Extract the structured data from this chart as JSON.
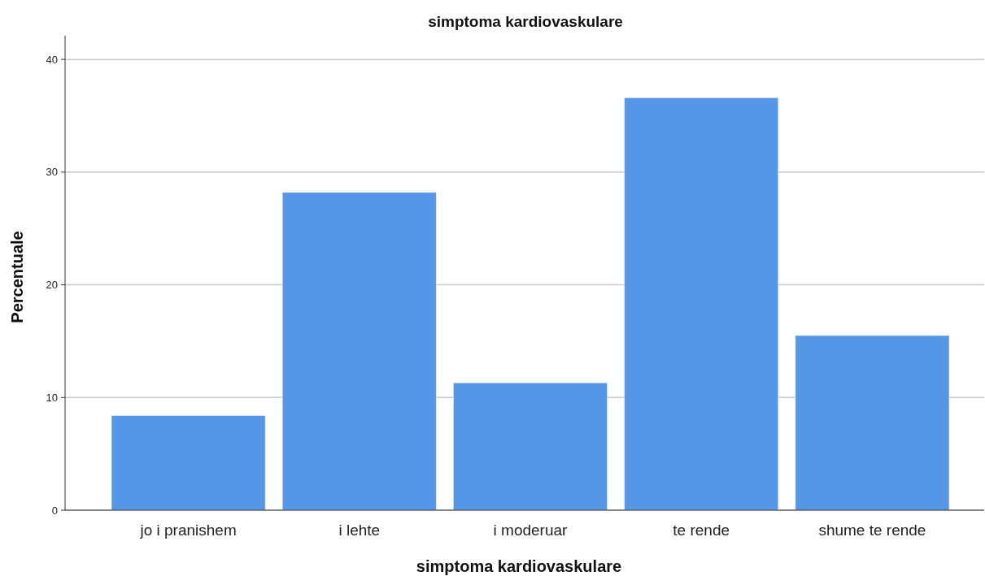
{
  "chart_data": {
    "type": "bar",
    "title": "simptoma kardiovaskulare",
    "xlabel": "simptoma kardiovaskulare",
    "ylabel": "Percentuale",
    "categories": [
      "jo i pranishem",
      "i lehte",
      "i moderuar",
      "te rende",
      "shume te rende"
    ],
    "values": [
      8.4,
      28.2,
      11.3,
      36.6,
      15.5
    ],
    "color": "#5596e6",
    "ylim": [
      0,
      42.1
    ],
    "yticks": [
      0,
      10,
      20,
      30,
      40
    ],
    "grid": "y"
  }
}
